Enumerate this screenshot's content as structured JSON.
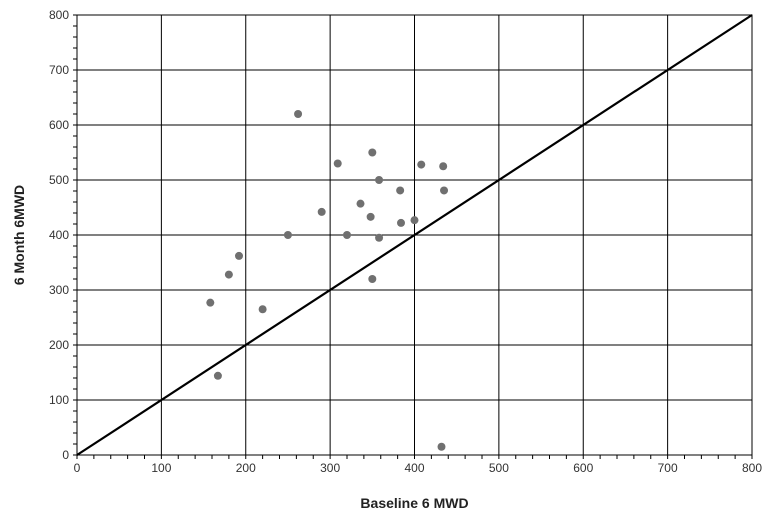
{
  "chart_data": {
    "type": "scatter",
    "title": "",
    "xlabel": "Baseline 6 MWD",
    "ylabel": "6 Month 6MWD",
    "xlim": [
      0,
      800
    ],
    "ylim": [
      0,
      800
    ],
    "x_ticks": [
      0,
      100,
      200,
      300,
      400,
      500,
      600,
      700,
      800
    ],
    "y_ticks": [
      0,
      100,
      200,
      300,
      400,
      500,
      600,
      700,
      800
    ],
    "x_tick_labels": [
      "0",
      "100",
      "200",
      "300",
      "400",
      "500",
      "600",
      "700",
      "800"
    ],
    "y_tick_labels": [
      "0",
      "100",
      "200",
      "300",
      "400",
      "500",
      "600",
      "700",
      "800"
    ],
    "grid": true,
    "legend": "none",
    "point_color": "#707070",
    "line_color": "#000000",
    "grid_color": "#000000",
    "reference_line": {
      "from": [
        0,
        0
      ],
      "to": [
        800,
        800
      ]
    },
    "points": [
      {
        "x": 158,
        "y": 277
      },
      {
        "x": 167,
        "y": 144
      },
      {
        "x": 180,
        "y": 328
      },
      {
        "x": 192,
        "y": 362
      },
      {
        "x": 220,
        "y": 265
      },
      {
        "x": 250,
        "y": 400
      },
      {
        "x": 262,
        "y": 620
      },
      {
        "x": 290,
        "y": 442
      },
      {
        "x": 309,
        "y": 530
      },
      {
        "x": 320,
        "y": 400
      },
      {
        "x": 336,
        "y": 457
      },
      {
        "x": 348,
        "y": 433
      },
      {
        "x": 350,
        "y": 550
      },
      {
        "x": 350,
        "y": 320
      },
      {
        "x": 358,
        "y": 500
      },
      {
        "x": 358,
        "y": 395
      },
      {
        "x": 383,
        "y": 481
      },
      {
        "x": 384,
        "y": 422
      },
      {
        "x": 400,
        "y": 427
      },
      {
        "x": 408,
        "y": 528
      },
      {
        "x": 432,
        "y": 15
      },
      {
        "x": 434,
        "y": 525
      },
      {
        "x": 435,
        "y": 481
      }
    ]
  }
}
